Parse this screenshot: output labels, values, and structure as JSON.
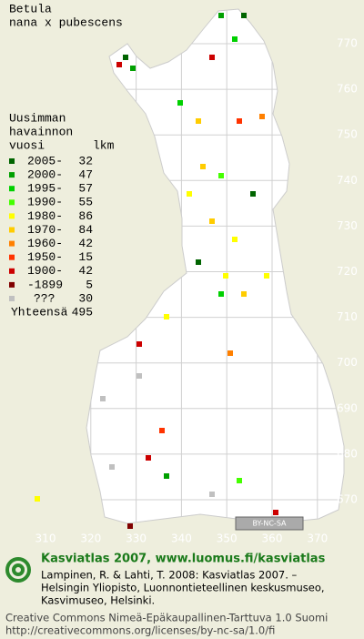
{
  "title": [
    "Betula",
    "nana x pubescens"
  ],
  "legend": {
    "heading": [
      "Uusimman",
      "havainnon",
      "vuosi"
    ],
    "count_heading": "lkm",
    "items": [
      {
        "label": "2005-",
        "count": 32,
        "color": "#006400"
      },
      {
        "label": "2000-",
        "count": 47,
        "color": "#00a000"
      },
      {
        "label": "1995-",
        "count": 57,
        "color": "#00d000"
      },
      {
        "label": "1990-",
        "count": 55,
        "color": "#44ff00"
      },
      {
        "label": "1980-",
        "count": 86,
        "color": "#ffff00"
      },
      {
        "label": "1970-",
        "count": 84,
        "color": "#ffcc00"
      },
      {
        "label": "1960-",
        "count": 42,
        "color": "#ff8000"
      },
      {
        "label": "1950-",
        "count": 15,
        "color": "#ff3300"
      },
      {
        "label": "1900-",
        "count": 42,
        "color": "#cc0000"
      },
      {
        "label": "-1899",
        "count": 5,
        "color": "#800000"
      },
      {
        "label": "???",
        "count": 30,
        "color": "#c0c0c0"
      }
    ],
    "total_label": "Yhteensä",
    "total": 495
  },
  "grid": {
    "y_labels": [
      "770",
      "760",
      "750",
      "740",
      "730",
      "720",
      "710",
      "700",
      "690",
      "680",
      "670"
    ],
    "x_labels": [
      "310",
      "320",
      "330",
      "340",
      "350",
      "360",
      "370"
    ]
  },
  "license_badge": "BY-NC-SA",
  "footer": {
    "headline": "Kasviatlas 2007, www.luomus.fi/kasviatlas",
    "citation": [
      "Lampinen, R. & Lahti, T. 2008: Kasviatlas 2007. –",
      "Helsingin Yliopisto, Luonnontieteellinen keskusmuseo,",
      "Kasvimuseo, Helsinki."
    ],
    "license": [
      "Creative Commons Nimeä-Epäkaupallinen-Tarttuva 1.0 Suomi",
      "http://creativecommons.org/licenses/by-nc-sa/1.0/fi"
    ]
  }
}
